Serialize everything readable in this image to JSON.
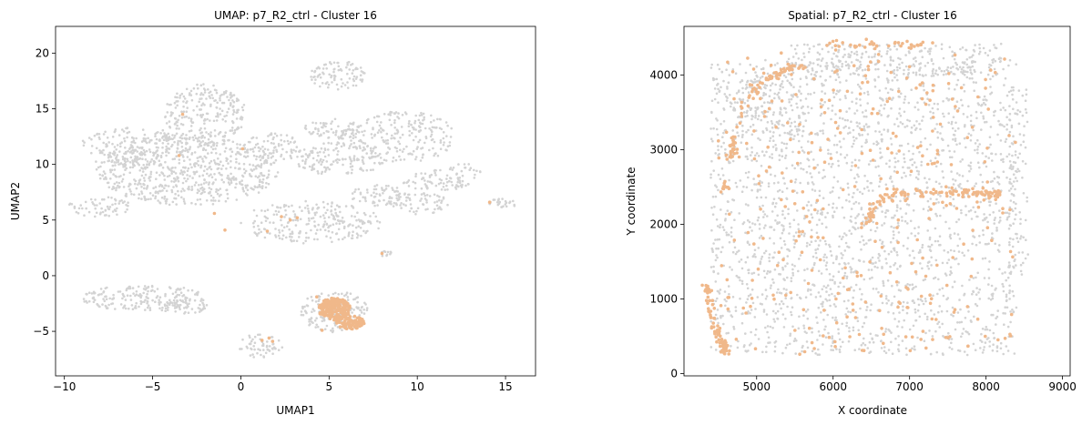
{
  "colors": {
    "background_points": "#d3d3d3",
    "highlight_points": "#f0b88a",
    "axes": "#000000"
  },
  "chart_data": [
    {
      "type": "scatter",
      "title": "UMAP: p7_R2_ctrl - Cluster 16",
      "xlabel": "UMAP1",
      "ylabel": "UMAP2",
      "xlim": [
        -10.5,
        16.7
      ],
      "ylim": [
        -9,
        22.4
      ],
      "xticks": [
        -10,
        -5,
        0,
        5,
        10,
        15
      ],
      "yticks": [
        -5,
        0,
        5,
        10,
        15,
        20
      ],
      "grid": false,
      "series": [
        {
          "role": "background",
          "color": "#d3d3d3",
          "regions": [
            {
              "shape": "ellipse",
              "cx": -3.0,
              "cy": 9.5,
              "rx": 5.2,
              "ry": 3.2,
              "n": 650
            },
            {
              "shape": "ellipse",
              "cx": -6.0,
              "cy": 11.5,
              "rx": 3.2,
              "ry": 1.8,
              "n": 180
            },
            {
              "shape": "ellipse",
              "cx": -2.0,
              "cy": 14.5,
              "rx": 2.3,
              "ry": 2.8,
              "n": 240
            },
            {
              "shape": "ellipse",
              "cx": -8.0,
              "cy": 6.2,
              "rx": 1.8,
              "ry": 0.9,
              "n": 60
            },
            {
              "shape": "ellipse",
              "cx": 1.8,
              "cy": 11.5,
              "rx": 1.6,
              "ry": 1.3,
              "n": 80
            },
            {
              "shape": "ellipse",
              "cx": 5.2,
              "cy": 13.2,
              "rx": 1.6,
              "ry": 1.0,
              "n": 80
            },
            {
              "shape": "ellipse",
              "cx": 5.6,
              "cy": 10.5,
              "rx": 2.6,
              "ry": 1.5,
              "n": 150
            },
            {
              "shape": "ellipse",
              "cx": 5.5,
              "cy": 18.0,
              "rx": 1.6,
              "ry": 1.3,
              "n": 90
            },
            {
              "shape": "ellipse",
              "cx": 9.2,
              "cy": 12.5,
              "rx": 3.0,
              "ry": 2.3,
              "n": 210
            },
            {
              "shape": "ellipse",
              "cx": 11.0,
              "cy": 8.5,
              "rx": 1.8,
              "ry": 1.0,
              "n": 70
            },
            {
              "shape": "ellipse",
              "cx": 10.0,
              "cy": 6.5,
              "rx": 1.8,
              "ry": 1.0,
              "n": 70
            },
            {
              "shape": "ellipse",
              "cx": 12.6,
              "cy": 9.0,
              "rx": 1.1,
              "ry": 1.1,
              "n": 30
            },
            {
              "shape": "ellipse",
              "cx": 4.0,
              "cy": 4.8,
              "rx": 4.0,
              "ry": 1.9,
              "n": 240
            },
            {
              "shape": "ellipse",
              "cx": 7.8,
              "cy": 7.2,
              "rx": 1.6,
              "ry": 1.0,
              "n": 60
            },
            {
              "shape": "ellipse",
              "cx": 14.8,
              "cy": 6.5,
              "rx": 0.9,
              "ry": 0.4,
              "n": 25
            },
            {
              "shape": "ellipse",
              "cx": -5.5,
              "cy": -2.0,
              "rx": 3.5,
              "ry": 1.2,
              "n": 200
            },
            {
              "shape": "ellipse",
              "cx": -3.2,
              "cy": -2.8,
              "rx": 1.3,
              "ry": 0.7,
              "n": 40
            },
            {
              "shape": "ellipse",
              "cx": 5.3,
              "cy": -3.2,
              "rx": 1.9,
              "ry": 1.9,
              "n": 170
            },
            {
              "shape": "ellipse",
              "cx": 1.2,
              "cy": -6.3,
              "rx": 1.3,
              "ry": 1.1,
              "n": 60
            },
            {
              "shape": "ellipse",
              "cx": 8.2,
              "cy": 2.0,
              "rx": 0.5,
              "ry": 0.25,
              "n": 10
            }
          ]
        },
        {
          "role": "highlight",
          "name": "Cluster 16",
          "color": "#f0b88a",
          "regions": [
            {
              "shape": "ellipse",
              "cx": 5.3,
              "cy": -3.0,
              "rx": 0.9,
              "ry": 1.0,
              "n": 200
            },
            {
              "shape": "ellipse",
              "cx": 6.2,
              "cy": -4.2,
              "rx": 0.8,
              "ry": 0.6,
              "n": 80
            }
          ],
          "points": [
            [
              -3.3,
              14.5
            ],
            [
              -3.5,
              10.8
            ],
            [
              0.1,
              11.4
            ],
            [
              -1.5,
              5.6
            ],
            [
              -0.9,
              4.1
            ],
            [
              1.5,
              4.0
            ],
            [
              2.3,
              5.3
            ],
            [
              2.8,
              5.0
            ],
            [
              3.2,
              5.2
            ],
            [
              1.2,
              -5.8
            ],
            [
              1.6,
              -5.6
            ],
            [
              1.8,
              -5.9
            ],
            [
              14.1,
              6.6
            ],
            [
              8.0,
              2.0
            ],
            [
              4.3,
              -1.9
            ],
            [
              4.6,
              -4.9
            ]
          ]
        }
      ]
    },
    {
      "type": "scatter",
      "title": "Spatial: p7_R2_ctrl - Cluster 16",
      "xlabel": "X coordinate",
      "ylabel": "Y coordinate",
      "xlim": [
        4050,
        9100
      ],
      "ylim": [
        -30,
        4650
      ],
      "xticks": [
        5000,
        6000,
        7000,
        8000,
        9000
      ],
      "yticks": [
        0,
        1000,
        2000,
        3000,
        4000
      ],
      "grid": false,
      "series": [
        {
          "role": "background",
          "color": "#d3d3d3",
          "regions": [
            {
              "shape": "rect",
              "x0": 4400,
              "x1": 8400,
              "y0": 250,
              "y1": 4200,
              "n": 2200
            },
            {
              "shape": "rect",
              "x0": 5400,
              "x1": 8200,
              "y0": 4000,
              "y1": 4420,
              "n": 260
            },
            {
              "shape": "rect",
              "x0": 4700,
              "x1": 5600,
              "y0": 3200,
              "y1": 4000,
              "n": 120
            },
            {
              "shape": "rect",
              "x0": 8300,
              "x1": 8550,
              "y0": 1300,
              "y1": 3900,
              "n": 90
            }
          ]
        },
        {
          "role": "highlight",
          "name": "Cluster 16",
          "color": "#f0b88a",
          "arcs": [
            {
              "points": [
                [
                  5620,
                  4130
                ],
                [
                  5300,
                  4030
                ],
                [
                  5000,
                  3850
                ],
                [
                  4820,
                  3550
                ],
                [
                  4720,
                  3150
                ],
                [
                  4680,
                  2900
                ]
              ],
              "n": 90
            },
            {
              "points": [
                [
                  4600,
                  2600
                ],
                [
                  4560,
                  2450
                ]
              ],
              "n": 10
            },
            {
              "points": [
                [
                  4330,
                  1200
                ],
                [
                  4400,
                  800
                ],
                [
                  4520,
                  450
                ],
                [
                  4600,
                  280
                ]
              ],
              "n": 80
            },
            {
              "points": [
                [
                  5950,
                  4380
                ],
                [
                  6400,
                  4410
                ],
                [
                  6900,
                  4400
                ],
                [
                  7300,
                  4400
                ]
              ],
              "n": 40
            },
            {
              "points": [
                [
                  6450,
                  2000
                ],
                [
                  6520,
                  2250
                ],
                [
                  6800,
                  2400
                ],
                [
                  7300,
                  2420
                ],
                [
                  7700,
                  2430
                ],
                [
                  8000,
                  2400
                ],
                [
                  8200,
                  2420
                ]
              ],
              "n": 130
            }
          ],
          "regions": [
            {
              "shape": "rect",
              "x0": 4500,
              "x1": 8400,
              "y0": 250,
              "y1": 4300,
              "n": 300
            }
          ]
        }
      ]
    }
  ]
}
